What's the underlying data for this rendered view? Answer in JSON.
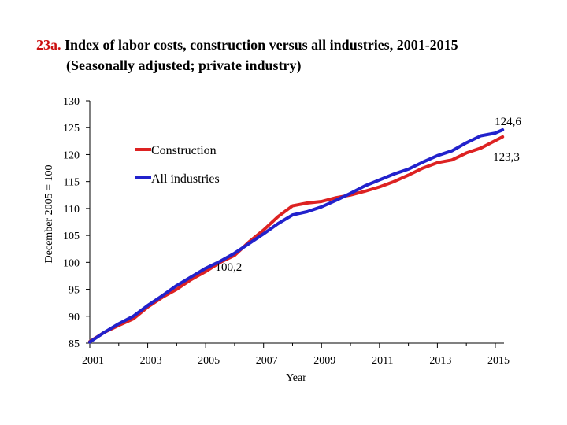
{
  "chart_data": {
    "type": "line",
    "title_number": "23a.",
    "title": "Index of labor costs, construction versus all industries, 2001-2015",
    "subtitle": "(Seasonally adjusted; private industry)",
    "xlabel": "Year",
    "ylabel": "December 2005 = 100",
    "xlim": [
      2001,
      2015.3
    ],
    "ylim": [
      85,
      130
    ],
    "y_ticks": [
      85,
      90,
      95,
      100,
      105,
      110,
      115,
      120,
      125,
      130
    ],
    "x_ticks": [
      2001,
      2003,
      2005,
      2007,
      2009,
      2011,
      2013,
      2015
    ],
    "legend_position": "upper-left",
    "series": [
      {
        "name": "Construction",
        "color": "#dd2222",
        "x": [
          2001.0,
          2001.5,
          2002.0,
          2002.5,
          2003.0,
          2003.5,
          2004.0,
          2004.5,
          2005.0,
          2005.5,
          2006.0,
          2006.5,
          2007.0,
          2007.5,
          2008.0,
          2008.5,
          2009.0,
          2009.5,
          2010.0,
          2010.5,
          2011.0,
          2011.5,
          2012.0,
          2012.5,
          2013.0,
          2013.5,
          2014.0,
          2014.5,
          2015.0,
          2015.25
        ],
        "y": [
          85.3,
          87.0,
          88.3,
          89.5,
          91.7,
          93.5,
          95.0,
          96.8,
          98.3,
          100.0,
          101.3,
          103.8,
          106.0,
          108.5,
          110.5,
          111.0,
          111.3,
          112.0,
          112.5,
          113.2,
          114.0,
          115.0,
          116.2,
          117.5,
          118.5,
          119.0,
          120.3,
          121.2,
          122.6,
          123.3
        ]
      },
      {
        "name": "All industries",
        "color": "#2222cc",
        "x": [
          2001.0,
          2001.5,
          2002.0,
          2002.5,
          2003.0,
          2003.5,
          2004.0,
          2004.5,
          2005.0,
          2005.5,
          2006.0,
          2006.5,
          2007.0,
          2007.5,
          2008.0,
          2008.5,
          2009.0,
          2009.5,
          2010.0,
          2010.5,
          2011.0,
          2011.5,
          2012.0,
          2012.5,
          2013.0,
          2013.5,
          2014.0,
          2014.5,
          2015.0,
          2015.25
        ],
        "y": [
          85.2,
          87.0,
          88.6,
          90.0,
          92.0,
          93.8,
          95.7,
          97.3,
          98.9,
          100.2,
          101.7,
          103.5,
          105.3,
          107.2,
          108.8,
          109.4,
          110.3,
          111.5,
          112.8,
          114.2,
          115.3,
          116.4,
          117.3,
          118.6,
          119.8,
          120.7,
          122.2,
          123.5,
          124.0,
          124.6
        ]
      }
    ],
    "annotations": [
      {
        "text": "124,6",
        "x": 2015.25,
        "y": 124.6
      },
      {
        "text": "123,3",
        "x": 2015.25,
        "y": 123.3
      },
      {
        "text": "100,2",
        "x": 2005.5,
        "y": 100.2
      }
    ]
  }
}
